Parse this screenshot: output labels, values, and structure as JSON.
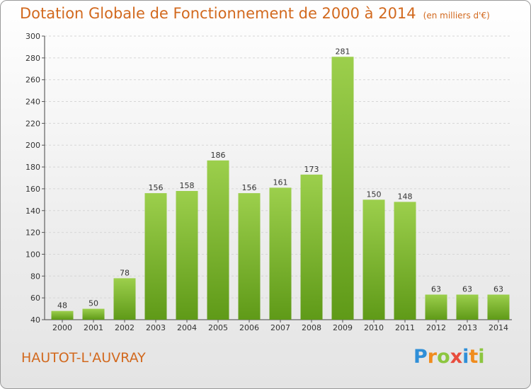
{
  "chart_data": {
    "type": "bar",
    "title": "Dotation Globale de Fonctionnement de 2000 à 2014",
    "subtitle": "(en milliers d'€)",
    "categories": [
      "2000",
      "2001",
      "2002",
      "2003",
      "2004",
      "2005",
      "2006",
      "2007",
      "2008",
      "2009",
      "2010",
      "2011",
      "2012",
      "2013",
      "2014"
    ],
    "values": [
      48,
      50,
      78,
      156,
      158,
      186,
      156,
      161,
      173,
      281,
      150,
      148,
      63,
      63,
      63
    ],
    "ylim": [
      40,
      300
    ],
    "yticks": [
      40,
      60,
      80,
      100,
      120,
      140,
      160,
      180,
      200,
      220,
      240,
      260,
      280,
      300
    ],
    "grid": true,
    "bar_color_top": "#9ccf4c",
    "bar_color_bottom": "#5f9a18"
  },
  "place_name": "HAUTOT-L'AUVRAY",
  "logo_text": "Proxiti"
}
